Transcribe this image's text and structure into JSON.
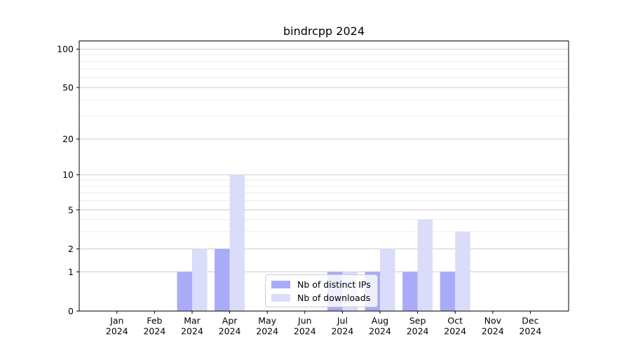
{
  "title": "bindrcpp 2024",
  "colors": {
    "ips_bar": "#a9abf8",
    "downloads_bar": "#dadcfa",
    "grid_major": "#cccccc",
    "grid_minor": "#eaeaea",
    "axis": "#000000",
    "legend_border": "#cccccc",
    "text": "#000000"
  },
  "legend": {
    "items": [
      {
        "label": "Nb of distinct IPs",
        "color_key": "ips_bar"
      },
      {
        "label": "Nb of downloads",
        "color_key": "downloads_bar"
      }
    ]
  },
  "chart_data": {
    "type": "bar",
    "title": "bindrcpp 2024",
    "categories": [
      "Jan",
      "Feb",
      "Mar",
      "Apr",
      "May",
      "Jun",
      "Jul",
      "Aug",
      "Sep",
      "Oct",
      "Nov",
      "Dec"
    ],
    "category_sublabel": "2024",
    "series": [
      {
        "name": "Nb of distinct IPs",
        "values": [
          0,
          0,
          1,
          2,
          0,
          0,
          1,
          1,
          1,
          1,
          0,
          0
        ]
      },
      {
        "name": "Nb of downloads",
        "values": [
          0,
          0,
          2,
          10,
          0,
          0,
          1,
          2,
          4,
          3,
          0,
          0
        ]
      }
    ],
    "xlabel": "",
    "ylabel": "",
    "y_axis": {
      "scale": "log-like",
      "major_ticks": [
        0,
        1,
        2,
        5,
        10,
        20,
        50,
        100
      ],
      "minor_gridlines": [
        3,
        4,
        6,
        7,
        8,
        9,
        30,
        40,
        60,
        70,
        80,
        90
      ]
    },
    "grid": true,
    "legend_position": "lower center"
  }
}
